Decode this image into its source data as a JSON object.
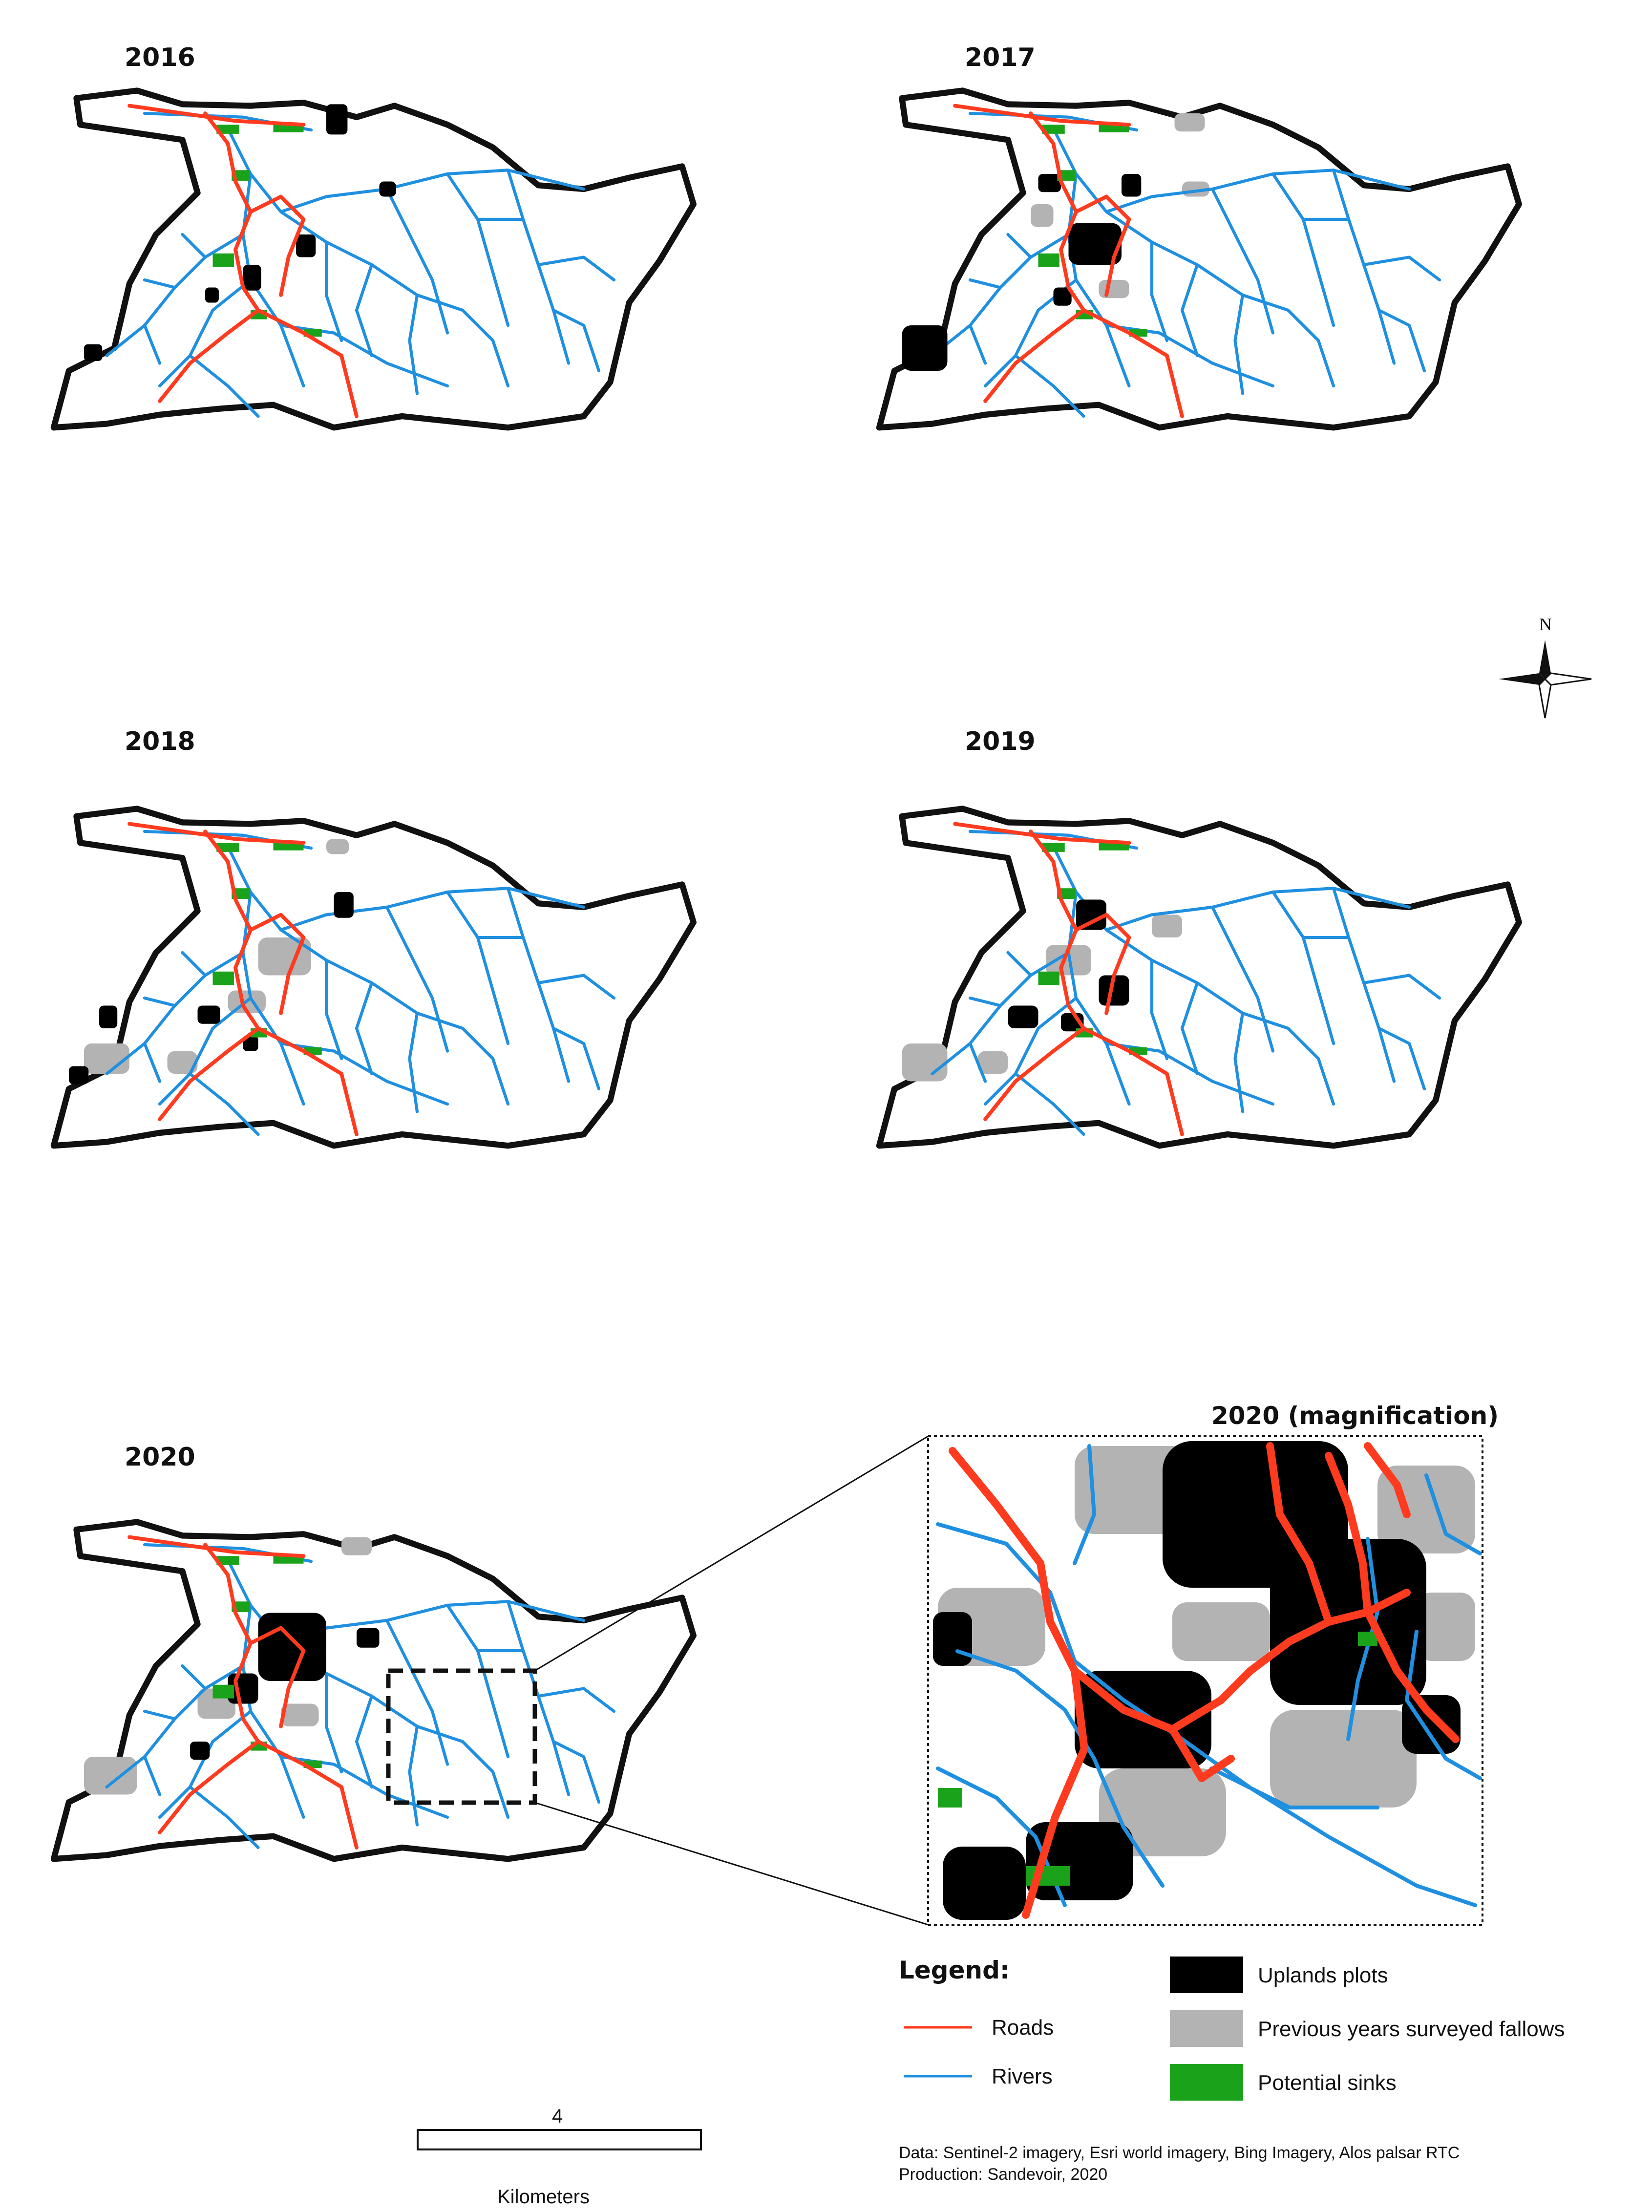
{
  "panels": [
    {
      "year": "2016"
    },
    {
      "year": "2017"
    },
    {
      "year": "2018"
    },
    {
      "year": "2019"
    },
    {
      "year": "2020"
    }
  ],
  "magnification_title": "2020 (magnification)",
  "legend": {
    "title": "Legend:",
    "roads": "Roads",
    "rivers": "Rivers",
    "uplands": "Uplands plots",
    "fallows": "Previous years surveyed fallows",
    "sinks": "Potential sinks"
  },
  "north_label": "N",
  "scale": {
    "value": "4",
    "unit": "Kilometers"
  },
  "credits": {
    "data": "Data: Sentinel-2 imagery, Esri world imagery, Bing Imagery, Alos palsar RTC",
    "production": "Production: Sandevoir, 2020"
  },
  "colors": {
    "roads": "#ff3b1f",
    "rivers": "#1f8fe0",
    "uplands": "#000000",
    "fallows": "#b3b3b3",
    "sinks": "#1aa31a"
  }
}
